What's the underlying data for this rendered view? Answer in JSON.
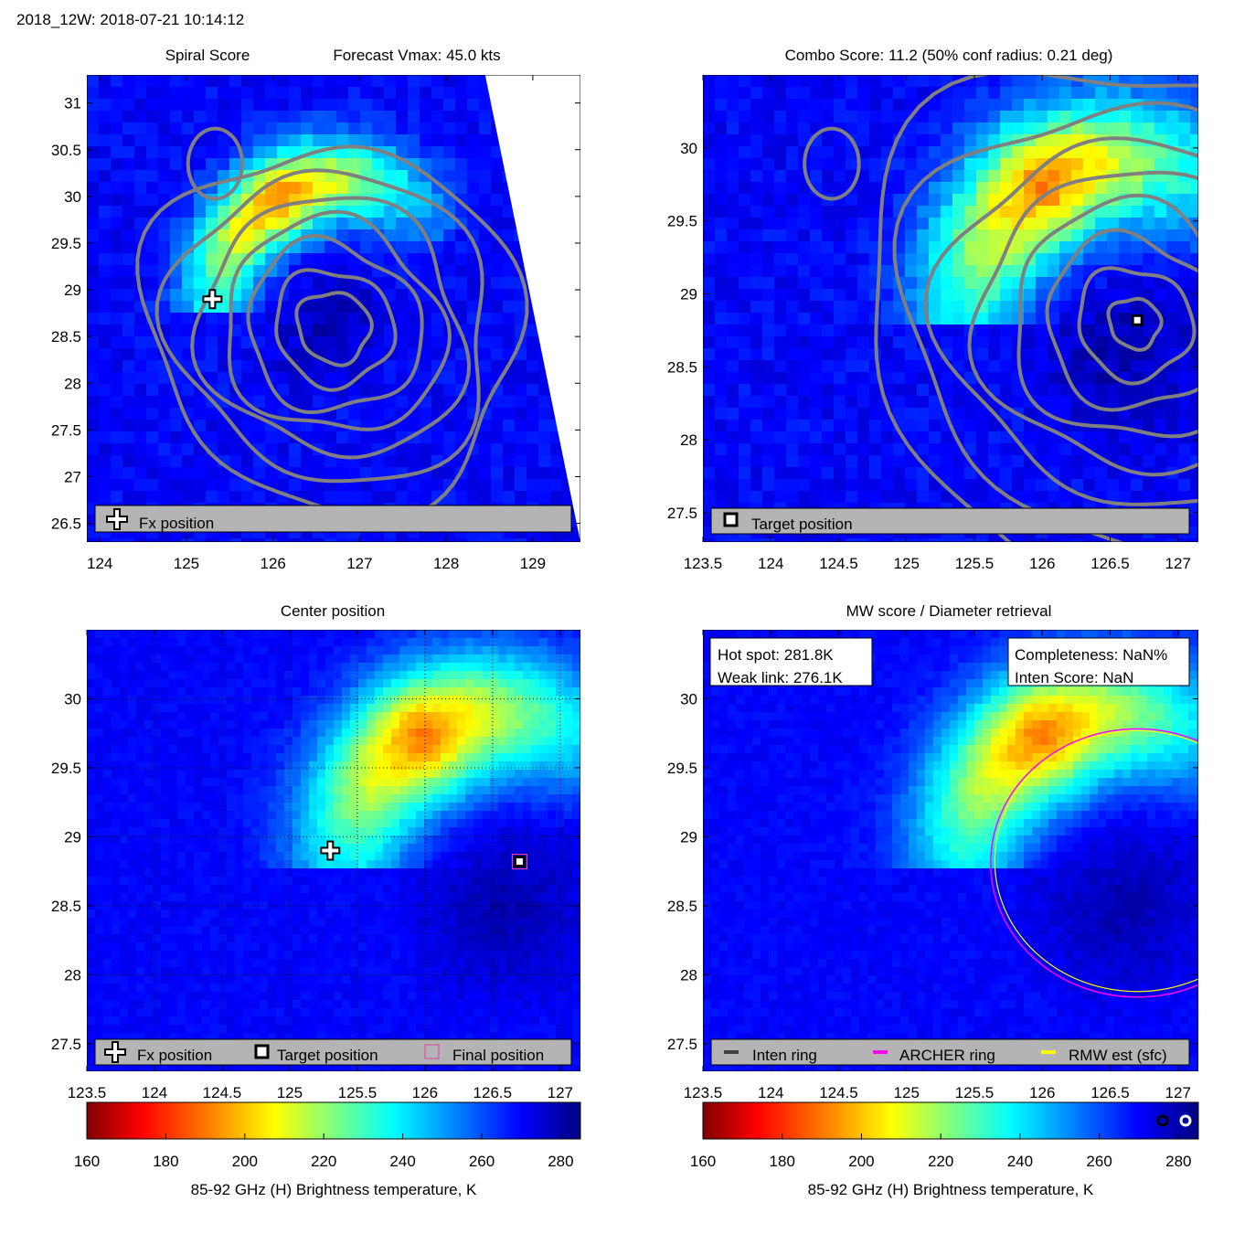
{
  "header": {
    "title": "2018_12W: 2018-07-21 10:14:12"
  },
  "colors": {
    "contour": "#808080",
    "legend_bg": "#b4b4b4",
    "archer_ring": "#ff00ff",
    "rmw_ring": "#ffff00",
    "inten_ring": "#404040",
    "final_marker": "#e040a0"
  },
  "colormap": {
    "name": "jet",
    "stops": [
      "#800000",
      "#ff0000",
      "#ff8000",
      "#ffff00",
      "#80ff80",
      "#00ffff",
      "#0080ff",
      "#0000ff",
      "#000080"
    ]
  },
  "chart_data": [
    {
      "id": "spiral",
      "type": "heatmap",
      "title_left": "Spiral Score",
      "title_right": "Forecast Vmax: 45.0 kts",
      "xlim": [
        123.85,
        129.55
      ],
      "ylim": [
        26.3,
        31.3
      ],
      "xticks": [
        124,
        125,
        126,
        127,
        128,
        129
      ],
      "yticks": [
        26.5,
        27,
        27.5,
        28,
        28.5,
        29,
        29.5,
        30,
        30.5,
        31
      ],
      "ytick_labels": [
        "26.5",
        "27",
        "27.5",
        "28",
        "28.5",
        "29",
        "29.5",
        "30",
        "30.5",
        "31"
      ],
      "pixelated": true,
      "swath_edge": [
        [
          128.45,
          31.3
        ],
        [
          129.55,
          26.3
        ]
      ],
      "band_center": [
        126.8,
        28.7
      ],
      "band_radius": [
        1.6,
        1.35
      ],
      "eye_center": [
        126.6,
        28.6
      ],
      "fx_position": [
        125.3,
        28.9
      ],
      "contour_center": [
        126.7,
        28.6
      ],
      "contour_radii": [
        0.4,
        0.65,
        0.95,
        1.2,
        1.45,
        1.75,
        2.05
      ],
      "legend": [
        {
          "symbol": "plus",
          "label": "Fx position"
        }
      ]
    },
    {
      "id": "combo",
      "type": "heatmap",
      "title": "Combo Score: 11.2  (50% conf radius: 0.21 deg)",
      "xlim": [
        123.5,
        127.15
      ],
      "ylim": [
        27.3,
        30.5
      ],
      "xticks": [
        123.5,
        124,
        124.5,
        125,
        125.5,
        126,
        126.5,
        127
      ],
      "xtick_labels": [
        "123.5",
        "124",
        "124.5",
        "125",
        "125.5",
        "126",
        "126.5",
        "127"
      ],
      "yticks": [
        27.5,
        28,
        28.5,
        29,
        29.5,
        30
      ],
      "ytick_labels": [
        "27.5",
        "28",
        "28.5",
        "29",
        "29.5",
        "30"
      ],
      "pixelated": true,
      "band_center": [
        126.6,
        28.75
      ],
      "band_radius": [
        1.25,
        1.05
      ],
      "eye_center": [
        126.6,
        28.6
      ],
      "target_position": [
        126.7,
        28.82
      ],
      "contour_center": [
        126.68,
        28.8
      ],
      "contour_radii": [
        0.18,
        0.4,
        0.62,
        0.85,
        1.08,
        1.32,
        1.6,
        1.9
      ],
      "legend": [
        {
          "symbol": "square",
          "label": "Target position"
        }
      ]
    },
    {
      "id": "center",
      "type": "heatmap",
      "title": "Center position",
      "xlim": [
        123.5,
        127.15
      ],
      "ylim": [
        27.3,
        30.5
      ],
      "xticks": [
        123.5,
        124,
        124.5,
        125,
        125.5,
        126,
        126.5,
        127
      ],
      "xtick_labels": [
        "123.5",
        "124",
        "124.5",
        "125",
        "125.5",
        "126",
        "126.5",
        "127"
      ],
      "yticks": [
        27.5,
        28,
        28.5,
        29,
        29.5,
        30
      ],
      "ytick_labels": [
        "27.5",
        "28",
        "28.5",
        "29",
        "29.5",
        "30"
      ],
      "pixelated": false,
      "grid": "dotted",
      "band_center": [
        126.55,
        28.75
      ],
      "band_radius": [
        1.2,
        1.05
      ],
      "eye_center": [
        126.6,
        28.5
      ],
      "fx_position": [
        125.3,
        28.9
      ],
      "target_position": [
        126.7,
        28.82
      ],
      "final_position": [
        126.7,
        28.82
      ],
      "legend": [
        {
          "symbol": "plus",
          "label": "Fx position"
        },
        {
          "symbol": "square",
          "label": "Target position"
        },
        {
          "symbol": "final",
          "label": "Final position"
        }
      ]
    },
    {
      "id": "mw",
      "type": "heatmap",
      "title": "MW score / Diameter retrieval",
      "xlim": [
        123.5,
        127.15
      ],
      "ylim": [
        27.3,
        30.5
      ],
      "xticks": [
        123.5,
        124,
        124.5,
        125,
        125.5,
        126,
        126.5,
        127
      ],
      "xtick_labels": [
        "123.5",
        "124",
        "124.5",
        "125",
        "125.5",
        "126",
        "126.5",
        "127"
      ],
      "yticks": [
        27.5,
        28,
        28.5,
        29,
        29.5,
        30
      ],
      "ytick_labels": [
        "27.5",
        "28",
        "28.5",
        "29",
        "29.5",
        "30"
      ],
      "pixelated": false,
      "band_center": [
        126.55,
        28.75
      ],
      "band_radius": [
        1.2,
        1.05
      ],
      "eye_center": [
        126.6,
        28.5
      ],
      "ring_center": [
        126.7,
        28.81
      ],
      "archer_ring_radius": 1.08,
      "rmw_ring_radius": 1.05,
      "info_left": [
        "Hot spot: 281.8K",
        "Weak link: 276.1K"
      ],
      "info_right": [
        "Completeness: NaN%",
        "Inten Score: NaN"
      ],
      "legend": [
        {
          "symbol": "line-inten",
          "label": "Inten ring"
        },
        {
          "symbol": "line-archer",
          "label": "ARCHER ring"
        },
        {
          "symbol": "line-rmw",
          "label": "RMW est (sfc)"
        }
      ]
    }
  ],
  "colorbars": [
    {
      "label": "85-92 GHz (H) Brightness temperature, K",
      "range": [
        160,
        285
      ],
      "ticks": [
        160,
        180,
        200,
        220,
        240,
        260,
        280
      ]
    },
    {
      "label": "85-92 GHz (H) Brightness temperature, K",
      "range": [
        160,
        285
      ],
      "ticks": [
        160,
        180,
        200,
        220,
        240,
        260,
        280
      ]
    }
  ]
}
